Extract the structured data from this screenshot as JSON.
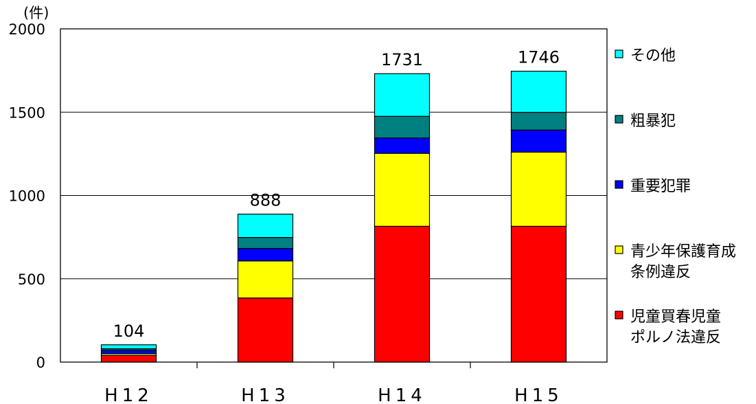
{
  "chart_data": {
    "type": "bar",
    "stacked": true,
    "unit_label": "(件)",
    "categories": [
      "H12",
      "H13",
      "H14",
      "H15"
    ],
    "ylim": [
      0,
      2000
    ],
    "yticks": [
      0,
      500,
      1000,
      1500,
      2000
    ],
    "grid": true,
    "legend_position": "right",
    "totals": [
      104,
      888,
      1731,
      1746
    ],
    "series": [
      {
        "name": "児童買春児童\nポルノ法違反",
        "color": "#ff0000",
        "values": [
          40,
          385,
          815,
          815
        ]
      },
      {
        "name": "青少年保護育成\n条例違反",
        "color": "#ffff00",
        "values": [
          10,
          222,
          438,
          445
        ]
      },
      {
        "name": "重要犯罪",
        "color": "#0000ff",
        "values": [
          20,
          75,
          92,
          133
        ]
      },
      {
        "name": "粗暴犯",
        "color": "#008080",
        "values": [
          10,
          66,
          130,
          106
        ]
      },
      {
        "name": "その他",
        "color": "#00ffff",
        "values": [
          24,
          140,
          256,
          247
        ]
      }
    ]
  }
}
